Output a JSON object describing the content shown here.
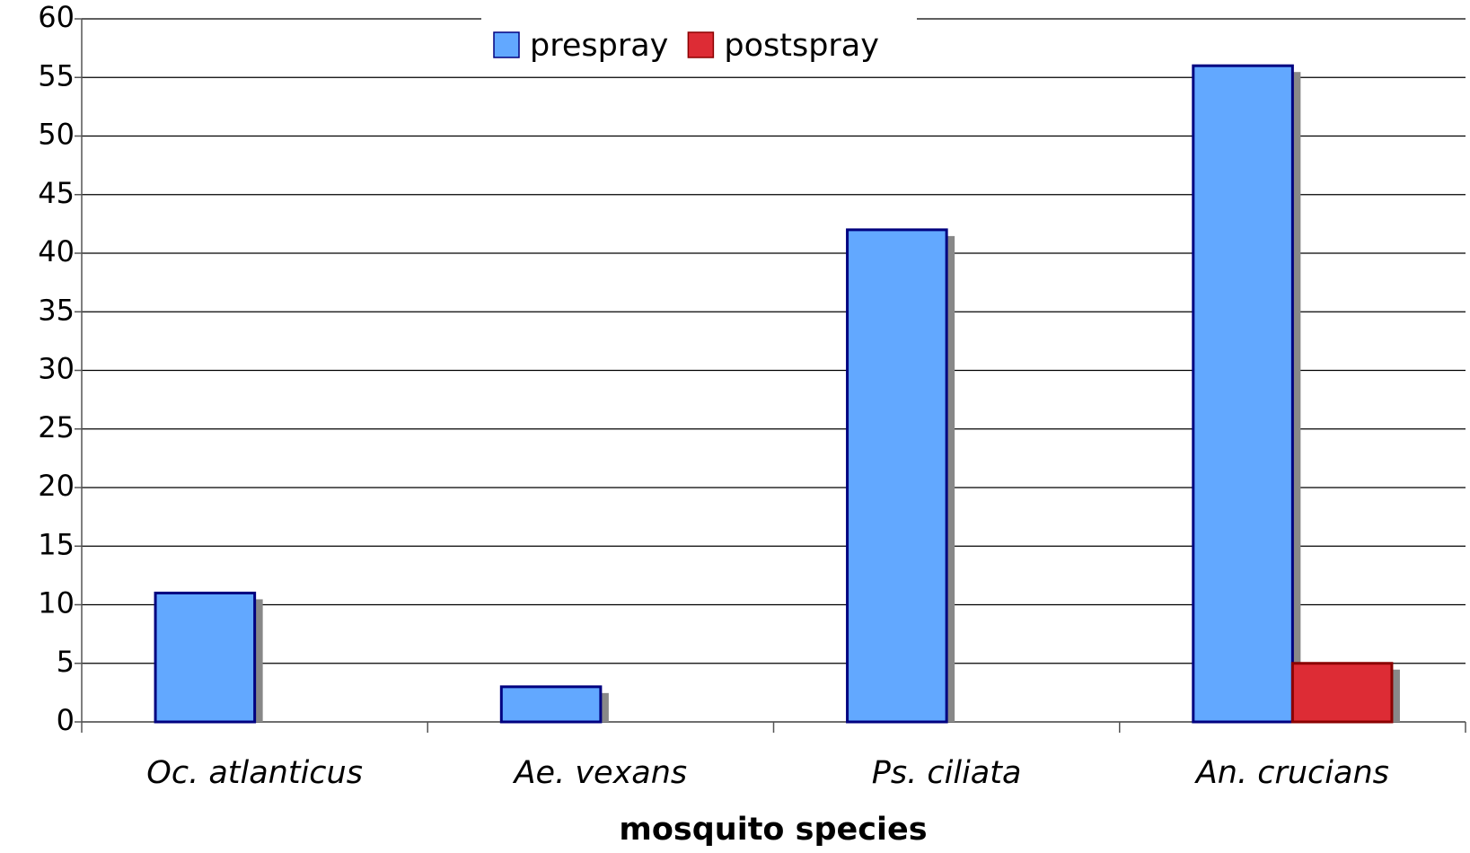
{
  "chart_data": {
    "type": "bar",
    "xlabel": "mosquito species",
    "categories": [
      "Oc. atlanticus",
      "Ae. vexans",
      "Ps. ciliata",
      "An. crucians"
    ],
    "series": [
      {
        "name": "prespray",
        "color": "#62a8ff",
        "values": [
          11,
          3,
          42,
          56
        ]
      },
      {
        "name": "postspray",
        "color": "#dd2c35",
        "values": [
          0,
          0,
          0,
          5
        ]
      }
    ],
    "ylim": [
      0,
      60
    ],
    "yticks": [
      0,
      5,
      10,
      15,
      20,
      25,
      30,
      35,
      40,
      45,
      50,
      55,
      60
    ],
    "grid": true,
    "legend": "top"
  }
}
